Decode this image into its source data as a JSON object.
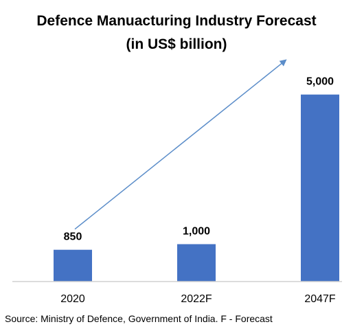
{
  "chart_data": {
    "type": "bar",
    "title": "Defence Manuacturing Industry Forecast",
    "subtitle": "(in US$ billion)",
    "categories": [
      "2020",
      "2022F",
      "2047F"
    ],
    "values": [
      850,
      1000,
      5000
    ],
    "value_labels": [
      "850",
      "1,000",
      "5,000"
    ],
    "ylim": [
      0,
      5600
    ],
    "grid": false,
    "bar_color": "#4472C4",
    "trend_arrow": {
      "from_category": "2020",
      "to_category": "2047F",
      "color": "#5B8DC9"
    }
  },
  "source": "Source: Ministry of Defence, Government of India. F - Forecast"
}
